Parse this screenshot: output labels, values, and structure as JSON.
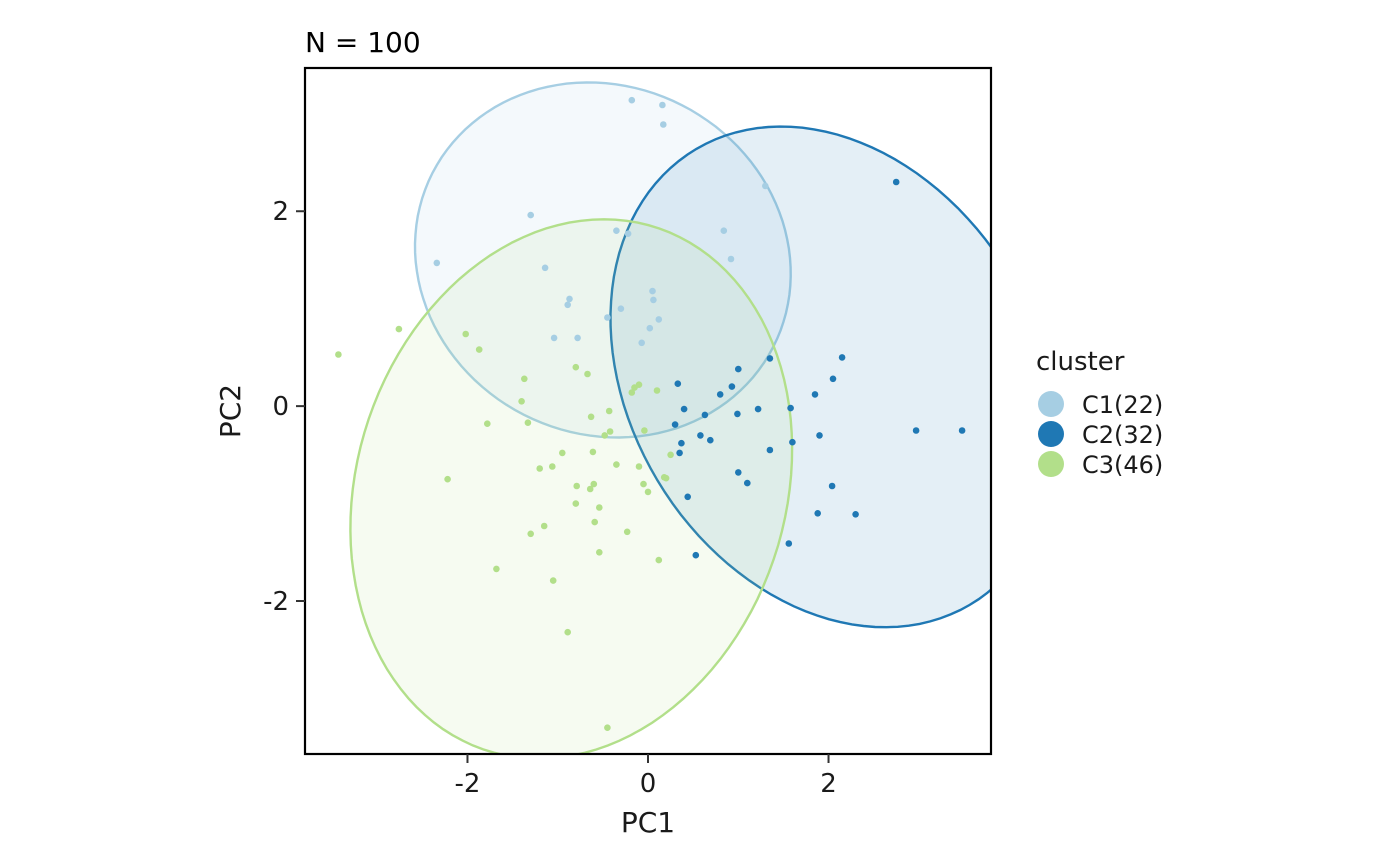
{
  "chart_data": {
    "type": "scatter",
    "title": "N = 100",
    "xlabel": "PC1",
    "ylabel": "PC2",
    "xlim": [
      -3.8,
      3.8
    ],
    "ylim": [
      -3.57,
      3.47
    ],
    "x_ticks": [
      -2,
      0,
      2
    ],
    "x_tick_labels": [
      "-2",
      "0",
      "2"
    ],
    "y_ticks": [
      -2,
      0,
      2
    ],
    "y_tick_labels": [
      "-2",
      "0",
      "2"
    ],
    "grid": false,
    "legend": {
      "title": "cluster",
      "placement": "right",
      "entries": [
        "C1(22)",
        "C2(32)",
        "C3(46)"
      ]
    },
    "series": [
      {
        "name": "C1(22)",
        "color": "#a6cee3",
        "ellipse": {
          "cx": -0.5,
          "cy": 1.5,
          "rx": 2.1,
          "ry": 1.8,
          "angle_deg": -15
        },
        "points": [
          [
            -0.18,
            3.14
          ],
          [
            0.16,
            3.09
          ],
          [
            0.17,
            2.89
          ],
          [
            1.3,
            2.26
          ],
          [
            -1.3,
            1.96
          ],
          [
            -0.35,
            1.8
          ],
          [
            -0.22,
            1.77
          ],
          [
            0.84,
            1.8
          ],
          [
            0.92,
            1.51
          ],
          [
            -2.34,
            1.47
          ],
          [
            -1.14,
            1.42
          ],
          [
            0.05,
            1.18
          ],
          [
            -0.87,
            1.1
          ],
          [
            0.06,
            1.09
          ],
          [
            -0.89,
            1.04
          ],
          [
            -0.3,
            1.0
          ],
          [
            -0.45,
            0.91
          ],
          [
            0.12,
            0.89
          ],
          [
            0.02,
            0.8
          ],
          [
            -1.04,
            0.7
          ],
          [
            -0.78,
            0.7
          ],
          [
            -0.07,
            0.65
          ]
        ]
      },
      {
        "name": "C2(32)",
        "color": "#1f78b4",
        "ellipse": {
          "cx": 2.05,
          "cy": 0.3,
          "rx": 2.2,
          "ry": 2.8,
          "angle_deg": 40
        },
        "points": [
          [
            2.75,
            2.3
          ],
          [
            2.15,
            0.5
          ],
          [
            1.35,
            0.49
          ],
          [
            1.0,
            0.38
          ],
          [
            2.05,
            0.28
          ],
          [
            0.33,
            0.23
          ],
          [
            0.93,
            0.2
          ],
          [
            0.8,
            0.12
          ],
          [
            1.85,
            0.12
          ],
          [
            1.58,
            -0.02
          ],
          [
            0.4,
            -0.03
          ],
          [
            1.22,
            -0.03
          ],
          [
            0.63,
            -0.09
          ],
          [
            0.99,
            -0.08
          ],
          [
            0.3,
            -0.19
          ],
          [
            1.35,
            -0.45
          ],
          [
            2.97,
            -0.25
          ],
          [
            3.48,
            -0.25
          ],
          [
            1.9,
            -0.3
          ],
          [
            0.58,
            -0.3
          ],
          [
            0.69,
            -0.35
          ],
          [
            0.37,
            -0.38
          ],
          [
            1.6,
            -0.37
          ],
          [
            0.35,
            -0.48
          ],
          [
            1.0,
            -0.68
          ],
          [
            1.1,
            -0.79
          ],
          [
            2.04,
            -0.82
          ],
          [
            0.44,
            -0.93
          ],
          [
            1.88,
            -1.1
          ],
          [
            2.3,
            -1.11
          ],
          [
            1.56,
            -1.41
          ],
          [
            0.53,
            -1.53
          ]
        ]
      },
      {
        "name": "C3(46)",
        "color": "#b2df8a",
        "ellipse": {
          "cx": -0.85,
          "cy": -0.85,
          "rx": 2.35,
          "ry": 2.85,
          "angle_deg": -25
        },
        "points": [
          [
            -3.43,
            0.53
          ],
          [
            -2.76,
            0.79
          ],
          [
            -2.02,
            0.74
          ],
          [
            -1.87,
            0.58
          ],
          [
            -0.8,
            0.4
          ],
          [
            -0.67,
            0.33
          ],
          [
            -1.37,
            0.28
          ],
          [
            -0.1,
            0.22
          ],
          [
            -0.15,
            0.19
          ],
          [
            0.1,
            0.16
          ],
          [
            -0.18,
            0.14
          ],
          [
            -1.4,
            0.05
          ],
          [
            -0.43,
            -0.05
          ],
          [
            -0.63,
            -0.11
          ],
          [
            -1.33,
            -0.17
          ],
          [
            -1.78,
            -0.18
          ],
          [
            -0.04,
            -0.25
          ],
          [
            -0.42,
            -0.26
          ],
          [
            -0.48,
            -0.3
          ],
          [
            -0.95,
            -0.48
          ],
          [
            -0.61,
            -0.47
          ],
          [
            -1.06,
            -0.62
          ],
          [
            -1.2,
            -0.64
          ],
          [
            -0.1,
            -0.62
          ],
          [
            0.18,
            -0.73
          ],
          [
            0.2,
            -0.74
          ],
          [
            -2.22,
            -0.75
          ],
          [
            -0.79,
            -0.82
          ],
          [
            -0.6,
            -0.8
          ],
          [
            -0.05,
            -0.8
          ],
          [
            -0.64,
            -0.85
          ],
          [
            0.0,
            -0.88
          ],
          [
            -0.54,
            -1.04
          ],
          [
            -0.59,
            -1.19
          ],
          [
            -1.15,
            -1.23
          ],
          [
            -1.3,
            -1.31
          ],
          [
            -0.23,
            -1.29
          ],
          [
            -0.54,
            -1.5
          ],
          [
            0.12,
            -1.58
          ],
          [
            -1.68,
            -1.67
          ],
          [
            -1.05,
            -1.79
          ],
          [
            -0.89,
            -2.32
          ],
          [
            -0.45,
            -3.3
          ],
          [
            -0.35,
            -0.6
          ],
          [
            0.25,
            -0.5
          ],
          [
            -0.8,
            -1.0
          ]
        ]
      }
    ]
  }
}
